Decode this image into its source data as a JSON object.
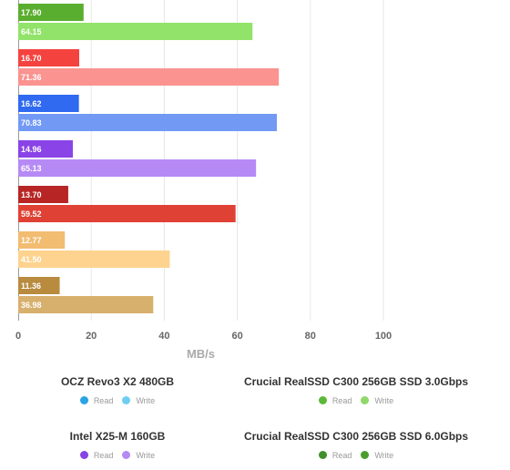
{
  "chart_data": {
    "type": "bar",
    "orientation": "horizontal",
    "xlabel": "MB/s",
    "xlim": [
      0,
      100
    ],
    "xticks": [
      0,
      20,
      40,
      60,
      80,
      100
    ],
    "grid": true,
    "groups": [
      {
        "bars": [
          {
            "value": 17.9,
            "label": "17.90",
            "color": "#5aae2f"
          },
          {
            "value": 64.15,
            "label": "64.15",
            "color": "#92e36a"
          }
        ]
      },
      {
        "bars": [
          {
            "value": 16.7,
            "label": "16.70",
            "color": "#f4433f"
          },
          {
            "value": 71.36,
            "label": "71.36",
            "color": "#fb9390"
          }
        ]
      },
      {
        "bars": [
          {
            "value": 16.62,
            "label": "16.62",
            "color": "#2f6af0"
          },
          {
            "value": 70.83,
            "label": "70.83",
            "color": "#729af5"
          }
        ]
      },
      {
        "bars": [
          {
            "value": 14.96,
            "label": "14.96",
            "color": "#8a43e6"
          },
          {
            "value": 65.13,
            "label": "65.13",
            "color": "#b68af5"
          }
        ]
      },
      {
        "bars": [
          {
            "value": 13.7,
            "label": "13.70",
            "color": "#b72625"
          },
          {
            "value": 59.52,
            "label": "59.52",
            "color": "#df4134"
          }
        ]
      },
      {
        "bars": [
          {
            "value": 12.77,
            "label": "12.77",
            "color": "#f2bc71"
          },
          {
            "value": 41.5,
            "label": "41.50",
            "color": "#fdd38f"
          }
        ]
      },
      {
        "bars": [
          {
            "value": 11.36,
            "label": "11.36",
            "color": "#b88b3f"
          },
          {
            "value": 36.98,
            "label": "36.98",
            "color": "#d8b06d"
          }
        ]
      }
    ],
    "legend": [
      {
        "name": "OCZ Revo3 X2 480GB",
        "read_color": "#2aa3e4",
        "write_color": "#6fcdf2"
      },
      {
        "name": "Crucial RealSSD C300 256GB SSD 3.0Gbps",
        "read_color": "#5cb83a",
        "write_color": "#8fd86a"
      },
      {
        "name": "Intel X25-M 160GB",
        "read_color": "#8645e3",
        "write_color": "#b48bf3"
      },
      {
        "name": "Crucial RealSSD C300 256GB SSD 6.0Gbps",
        "read_color": "#3f8f2a",
        "write_color": "#4b9e2e"
      }
    ],
    "legend_read_label": "Read",
    "legend_write_label": "Write"
  }
}
